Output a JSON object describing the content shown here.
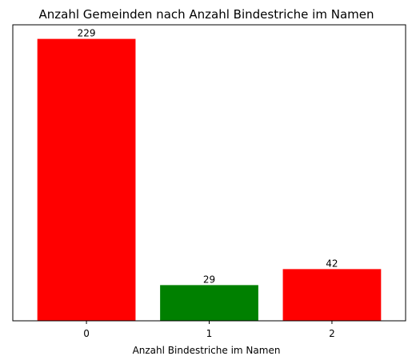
{
  "chart_data": {
    "type": "bar",
    "title": "Anzahl Gemeinden nach Anzahl Bindestriche im Namen",
    "xlabel": "Anzahl Bindestriche im Namen",
    "ylabel": "",
    "categories": [
      "0",
      "1",
      "2"
    ],
    "values": [
      229,
      29,
      42
    ],
    "data_labels": [
      "229",
      "29",
      "42"
    ],
    "bar_colors": [
      "#ff0000",
      "#008000",
      "#ff0000"
    ],
    "ylim": [
      0,
      240
    ],
    "y_ticks_shown": false,
    "grid": false,
    "legend": "none"
  }
}
